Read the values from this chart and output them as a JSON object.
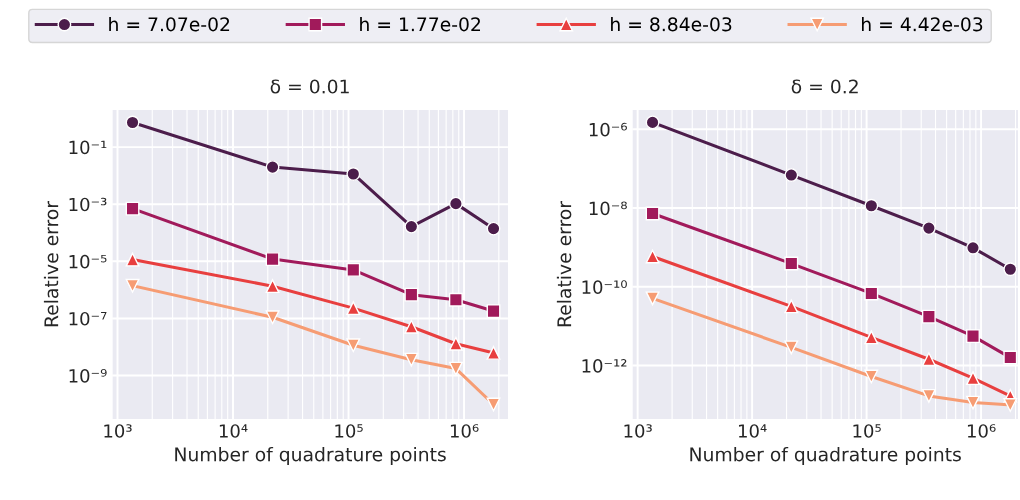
{
  "chart_data": [
    {
      "type": "line",
      "title": "δ = 0.01",
      "xlabel": "Number of quadrature points",
      "ylabel": "Relative error",
      "log": "xy",
      "grid": true,
      "legend": "top",
      "line_style": "solid",
      "x": [
        1350,
        22000,
        110000,
        350000,
        850000,
        1800000
      ],
      "xlim": [
        900,
        2400000
      ],
      "xticks": [
        {
          "value": 1000,
          "label": "10³"
        },
        {
          "value": 10000,
          "label": "10⁴"
        },
        {
          "value": 100000,
          "label": "10⁵"
        },
        {
          "value": 1000000,
          "label": "10⁶"
        }
      ],
      "ylim": [
        3e-11,
        2
      ],
      "yticks": [
        {
          "value": 1e-09,
          "label": "10⁻⁹"
        },
        {
          "value": 1e-07,
          "label": "10⁻⁷"
        },
        {
          "value": 1e-05,
          "label": "10⁻⁵"
        },
        {
          "value": 0.001,
          "label": "10⁻³"
        },
        {
          "value": 0.1,
          "label": "10⁻¹"
        }
      ],
      "series": [
        {
          "name": "h = 7.07e-02",
          "color": "#4c1d4b",
          "marker": "circle",
          "values": [
            0.73,
            0.02,
            0.0115,
            0.000165,
            0.00105,
            0.00014
          ]
        },
        {
          "name": "h = 1.77e-02",
          "color": "#a11a5b",
          "marker": "square",
          "values": [
            0.0007,
            1.2e-05,
            5e-06,
            6.8e-07,
            4.5e-07,
            1.8e-07
          ]
        },
        {
          "name": "h = 8.84e-03",
          "color": "#e83f3f",
          "marker": "triangle",
          "values": [
            1.15e-05,
            1.35e-06,
            2.3e-07,
            5.1e-08,
            1.3e-08,
            6.2e-09
          ]
        },
        {
          "name": "h = 4.42e-03",
          "color": "#f69c73",
          "marker": "triangle_down",
          "values": [
            1.4e-06,
            1.1e-07,
            1.15e-08,
            3.6e-09,
            1.75e-09,
            9.7e-11
          ]
        }
      ]
    },
    {
      "type": "line",
      "title": "δ = 0.2",
      "xlabel": "Number of quadrature points",
      "ylabel": "Relative error",
      "log": "xy",
      "grid": true,
      "line_style": "solid",
      "x": [
        1350,
        22000,
        110000,
        350000,
        850000,
        1800000
      ],
      "xlim": [
        900,
        2100000
      ],
      "xticks": [
        {
          "value": 1000,
          "label": "10³"
        },
        {
          "value": 10000,
          "label": "10⁴"
        },
        {
          "value": 100000,
          "label": "10⁵"
        },
        {
          "value": 1000000,
          "label": "10⁶"
        }
      ],
      "ylim": [
        4.4e-14,
        3.1e-06
      ],
      "yticks": [
        {
          "value": 1e-12,
          "label": "10⁻¹²"
        },
        {
          "value": 1e-10,
          "label": "10⁻¹⁰"
        },
        {
          "value": 1e-08,
          "label": "10⁻⁸"
        },
        {
          "value": 1e-06,
          "label": "10⁻⁶"
        }
      ],
      "series": [
        {
          "color": "#4c1d4b",
          "marker": "circle",
          "values": [
            1.5e-06,
            6.9e-08,
            1.15e-08,
            3.1e-09,
            9.8e-10,
            2.8e-10
          ]
        },
        {
          "color": "#a11a5b",
          "marker": "square",
          "values": [
            7.3e-09,
            3.9e-10,
            6.8e-11,
            1.75e-11,
            5.6e-12,
            1.6e-12
          ]
        },
        {
          "color": "#e83f3f",
          "marker": "triangle",
          "values": [
            5.9e-10,
            3.2e-11,
            5.2e-12,
            1.45e-12,
            4.8e-13,
            1.7e-13
          ]
        },
        {
          "color": "#f69c73",
          "marker": "triangle_down",
          "values": [
            5.1e-11,
            2.9e-12,
            5.3e-13,
            1.7e-13,
            1.15e-13,
            1e-13
          ]
        }
      ]
    }
  ]
}
